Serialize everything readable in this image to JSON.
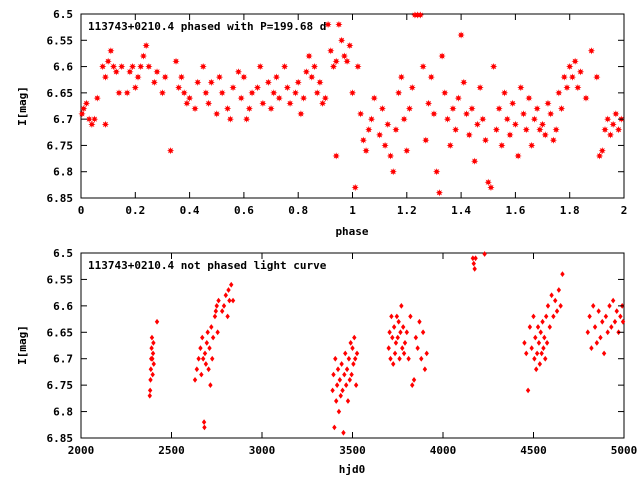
{
  "chart_data": [
    {
      "type": "scatter",
      "title": "113743+0210.4 phased with P=199.68 d",
      "xlabel": "phase",
      "ylabel": "I[mag]",
      "xlim": [
        0,
        2
      ],
      "ylim": [
        6.5,
        6.85
      ],
      "y_inverted": true,
      "xticks": [
        0,
        0.2,
        0.4,
        0.6,
        0.8,
        1,
        1.2,
        1.4,
        1.6,
        1.8,
        2
      ],
      "xtick_labels": [
        "0",
        "0.2",
        "0.4",
        "0.6",
        "0.8",
        "1",
        "1.2",
        "1.4",
        "1.6",
        "1.8",
        "2"
      ],
      "yticks": [
        6.5,
        6.55,
        6.6,
        6.65,
        6.7,
        6.75,
        6.8,
        6.85
      ],
      "ytick_labels": [
        "6.5",
        "6.55",
        "6.6",
        "6.65",
        "6.7",
        "6.75",
        "6.8",
        "6.85"
      ],
      "grid": false,
      "marker_color": "#ff0000",
      "marker": "filled-star",
      "points": [
        [
          0.0,
          6.69
        ],
        [
          0.01,
          6.68
        ],
        [
          0.02,
          6.67
        ],
        [
          0.03,
          6.7
        ],
        [
          0.04,
          6.71
        ],
        [
          0.05,
          6.7
        ],
        [
          0.06,
          6.66
        ],
        [
          0.08,
          6.6
        ],
        [
          0.09,
          6.62
        ],
        [
          0.1,
          6.59
        ],
        [
          0.11,
          6.57
        ],
        [
          0.12,
          6.6
        ],
        [
          0.13,
          6.61
        ],
        [
          0.09,
          6.71
        ],
        [
          0.14,
          6.65
        ],
        [
          0.15,
          6.6
        ],
        [
          0.17,
          6.65
        ],
        [
          0.18,
          6.61
        ],
        [
          0.19,
          6.6
        ],
        [
          0.2,
          6.64
        ],
        [
          0.21,
          6.62
        ],
        [
          0.22,
          6.6
        ],
        [
          0.23,
          6.58
        ],
        [
          0.24,
          6.56
        ],
        [
          0.25,
          6.6
        ],
        [
          0.27,
          6.63
        ],
        [
          0.28,
          6.61
        ],
        [
          0.3,
          6.65
        ],
        [
          0.31,
          6.62
        ],
        [
          0.33,
          6.76
        ],
        [
          0.35,
          6.59
        ],
        [
          0.36,
          6.64
        ],
        [
          0.37,
          6.62
        ],
        [
          0.38,
          6.65
        ],
        [
          0.39,
          6.67
        ],
        [
          0.4,
          6.66
        ],
        [
          0.42,
          6.68
        ],
        [
          0.43,
          6.63
        ],
        [
          0.45,
          6.6
        ],
        [
          0.46,
          6.65
        ],
        [
          0.47,
          6.67
        ],
        [
          0.48,
          6.63
        ],
        [
          0.5,
          6.69
        ],
        [
          0.51,
          6.62
        ],
        [
          0.52,
          6.65
        ],
        [
          0.54,
          6.68
        ],
        [
          0.55,
          6.7
        ],
        [
          0.56,
          6.64
        ],
        [
          0.58,
          6.61
        ],
        [
          0.59,
          6.66
        ],
        [
          0.6,
          6.62
        ],
        [
          0.61,
          6.7
        ],
        [
          0.62,
          6.68
        ],
        [
          0.63,
          6.65
        ],
        [
          0.65,
          6.64
        ],
        [
          0.66,
          6.6
        ],
        [
          0.67,
          6.67
        ],
        [
          0.69,
          6.63
        ],
        [
          0.7,
          6.68
        ],
        [
          0.71,
          6.65
        ],
        [
          0.72,
          6.62
        ],
        [
          0.73,
          6.66
        ],
        [
          0.75,
          6.6
        ],
        [
          0.76,
          6.64
        ],
        [
          0.77,
          6.67
        ],
        [
          0.79,
          6.65
        ],
        [
          0.8,
          6.63
        ],
        [
          0.81,
          6.69
        ],
        [
          0.82,
          6.66
        ],
        [
          0.83,
          6.61
        ],
        [
          0.84,
          6.58
        ],
        [
          0.85,
          6.62
        ],
        [
          0.86,
          6.6
        ],
        [
          0.87,
          6.65
        ],
        [
          0.88,
          6.63
        ],
        [
          0.89,
          6.67
        ],
        [
          0.9,
          6.66
        ],
        [
          0.91,
          6.52
        ],
        [
          0.92,
          6.57
        ],
        [
          0.93,
          6.6
        ],
        [
          0.94,
          6.59
        ],
        [
          0.95,
          6.52
        ],
        [
          0.96,
          6.55
        ],
        [
          0.97,
          6.58
        ],
        [
          0.98,
          6.59
        ],
        [
          0.94,
          6.77
        ],
        [
          0.99,
          6.56
        ],
        [
          1.0,
          6.65
        ],
        [
          1.01,
          6.83
        ],
        [
          1.02,
          6.6
        ],
        [
          1.03,
          6.69
        ],
        [
          1.04,
          6.74
        ],
        [
          1.05,
          6.76
        ],
        [
          1.06,
          6.72
        ],
        [
          1.07,
          6.7
        ],
        [
          1.08,
          6.66
        ],
        [
          1.1,
          6.73
        ],
        [
          1.11,
          6.68
        ],
        [
          1.12,
          6.75
        ],
        [
          1.13,
          6.71
        ],
        [
          1.14,
          6.77
        ],
        [
          1.15,
          6.8
        ],
        [
          1.16,
          6.72
        ],
        [
          1.17,
          6.65
        ],
        [
          1.18,
          6.62
        ],
        [
          1.19,
          6.7
        ],
        [
          1.2,
          6.76
        ],
        [
          1.21,
          6.68
        ],
        [
          1.22,
          6.64
        ],
        [
          1.23,
          6.5
        ],
        [
          1.24,
          6.5
        ],
        [
          1.25,
          6.5
        ],
        [
          1.26,
          6.6
        ],
        [
          1.27,
          6.74
        ],
        [
          1.28,
          6.67
        ],
        [
          1.29,
          6.62
        ],
        [
          1.3,
          6.69
        ],
        [
          1.31,
          6.8
        ],
        [
          1.32,
          6.84
        ],
        [
          1.33,
          6.58
        ],
        [
          1.34,
          6.65
        ],
        [
          1.35,
          6.7
        ],
        [
          1.36,
          6.75
        ],
        [
          1.37,
          6.68
        ],
        [
          1.38,
          6.72
        ],
        [
          1.39,
          6.66
        ],
        [
          1.4,
          6.54
        ],
        [
          1.41,
          6.63
        ],
        [
          1.42,
          6.69
        ],
        [
          1.43,
          6.73
        ],
        [
          1.44,
          6.68
        ],
        [
          1.45,
          6.78
        ],
        [
          1.46,
          6.71
        ],
        [
          1.47,
          6.64
        ],
        [
          1.48,
          6.7
        ],
        [
          1.49,
          6.74
        ],
        [
          1.5,
          6.82
        ],
        [
          1.51,
          6.83
        ],
        [
          1.52,
          6.6
        ],
        [
          1.53,
          6.72
        ],
        [
          1.54,
          6.68
        ],
        [
          1.55,
          6.75
        ],
        [
          1.56,
          6.65
        ],
        [
          1.57,
          6.7
        ],
        [
          1.58,
          6.73
        ],
        [
          1.59,
          6.67
        ],
        [
          1.6,
          6.71
        ],
        [
          1.61,
          6.77
        ],
        [
          1.62,
          6.64
        ],
        [
          1.63,
          6.69
        ],
        [
          1.64,
          6.72
        ],
        [
          1.65,
          6.66
        ],
        [
          1.66,
          6.75
        ],
        [
          1.67,
          6.7
        ],
        [
          1.68,
          6.68
        ],
        [
          1.69,
          6.72
        ],
        [
          1.7,
          6.71
        ],
        [
          1.71,
          6.73
        ],
        [
          1.72,
          6.67
        ],
        [
          1.73,
          6.69
        ],
        [
          1.74,
          6.74
        ],
        [
          1.75,
          6.72
        ],
        [
          1.76,
          6.65
        ],
        [
          1.77,
          6.68
        ],
        [
          1.78,
          6.62
        ],
        [
          1.79,
          6.64
        ],
        [
          1.8,
          6.6
        ],
        [
          1.81,
          6.62
        ],
        [
          1.82,
          6.59
        ],
        [
          1.83,
          6.64
        ],
        [
          1.84,
          6.61
        ],
        [
          1.86,
          6.66
        ],
        [
          1.88,
          6.57
        ],
        [
          1.9,
          6.62
        ],
        [
          1.91,
          6.77
        ],
        [
          1.92,
          6.76
        ],
        [
          1.93,
          6.72
        ],
        [
          1.94,
          6.7
        ],
        [
          1.95,
          6.73
        ],
        [
          1.96,
          6.71
        ],
        [
          1.97,
          6.69
        ],
        [
          1.98,
          6.72
        ],
        [
          1.99,
          6.7
        ]
      ]
    },
    {
      "type": "scatter",
      "title": "113743+0210.4 not phased light curve",
      "xlabel": "hjd0",
      "ylabel": "I[mag]",
      "xlim": [
        2000,
        5000
      ],
      "ylim": [
        6.5,
        6.85
      ],
      "y_inverted": true,
      "xticks": [
        2000,
        2500,
        3000,
        3500,
        4000,
        4500,
        5000
      ],
      "xtick_labels": [
        "2000",
        "2500",
        "3000",
        "3500",
        "4000",
        "4500",
        "5000"
      ],
      "yticks": [
        6.5,
        6.55,
        6.6,
        6.65,
        6.7,
        6.75,
        6.8,
        6.85
      ],
      "ytick_labels": [
        "6.5",
        "6.55",
        "6.6",
        "6.65",
        "6.7",
        "6.75",
        "6.8",
        "6.85"
      ],
      "grid": false,
      "marker_color": "#ff0000",
      "marker": "diamond",
      "points": [
        [
          2380,
          6.77
        ],
        [
          2382,
          6.76
        ],
        [
          2384,
          6.74
        ],
        [
          2386,
          6.72
        ],
        [
          2388,
          6.7
        ],
        [
          2390,
          6.68
        ],
        [
          2392,
          6.66
        ],
        [
          2394,
          6.7
        ],
        [
          2396,
          6.73
        ],
        [
          2398,
          6.69
        ],
        [
          2400,
          6.67
        ],
        [
          2402,
          6.71
        ],
        [
          2420,
          6.63
        ],
        [
          2630,
          6.74
        ],
        [
          2640,
          6.72
        ],
        [
          2650,
          6.7
        ],
        [
          2660,
          6.68
        ],
        [
          2665,
          6.73
        ],
        [
          2670,
          6.66
        ],
        [
          2675,
          6.7
        ],
        [
          2680,
          6.82
        ],
        [
          2682,
          6.83
        ],
        [
          2685,
          6.69
        ],
        [
          2690,
          6.71
        ],
        [
          2695,
          6.67
        ],
        [
          2700,
          6.65
        ],
        [
          2705,
          6.72
        ],
        [
          2710,
          6.68
        ],
        [
          2715,
          6.75
        ],
        [
          2720,
          6.64
        ],
        [
          2725,
          6.7
        ],
        [
          2730,
          6.66
        ],
        [
          2740,
          6.62
        ],
        [
          2745,
          6.61
        ],
        [
          2750,
          6.6
        ],
        [
          2755,
          6.65
        ],
        [
          2760,
          6.59
        ],
        [
          2780,
          6.61
        ],
        [
          2790,
          6.6
        ],
        [
          2800,
          6.58
        ],
        [
          2810,
          6.62
        ],
        [
          2815,
          6.57
        ],
        [
          2820,
          6.59
        ],
        [
          2830,
          6.56
        ],
        [
          2840,
          6.59
        ],
        [
          3390,
          6.76
        ],
        [
          3395,
          6.73
        ],
        [
          3400,
          6.83
        ],
        [
          3405,
          6.7
        ],
        [
          3410,
          6.78
        ],
        [
          3415,
          6.75
        ],
        [
          3420,
          6.72
        ],
        [
          3425,
          6.8
        ],
        [
          3430,
          6.74
        ],
        [
          3435,
          6.77
        ],
        [
          3440,
          6.71
        ],
        [
          3445,
          6.76
        ],
        [
          3450,
          6.84
        ],
        [
          3455,
          6.73
        ],
        [
          3460,
          6.69
        ],
        [
          3465,
          6.75
        ],
        [
          3470,
          6.72
        ],
        [
          3475,
          6.78
        ],
        [
          3480,
          6.7
        ],
        [
          3485,
          6.74
        ],
        [
          3490,
          6.67
        ],
        [
          3495,
          6.73
        ],
        [
          3500,
          6.68
        ],
        [
          3505,
          6.71
        ],
        [
          3510,
          6.66
        ],
        [
          3515,
          6.7
        ],
        [
          3520,
          6.75
        ],
        [
          3525,
          6.69
        ],
        [
          3700,
          6.68
        ],
        [
          3705,
          6.65
        ],
        [
          3710,
          6.7
        ],
        [
          3715,
          6.62
        ],
        [
          3720,
          6.66
        ],
        [
          3725,
          6.71
        ],
        [
          3730,
          6.64
        ],
        [
          3735,
          6.69
        ],
        [
          3740,
          6.67
        ],
        [
          3745,
          6.62
        ],
        [
          3750,
          6.66
        ],
        [
          3755,
          6.63
        ],
        [
          3760,
          6.7
        ],
        [
          3765,
          6.65
        ],
        [
          3770,
          6.6
        ],
        [
          3775,
          6.68
        ],
        [
          3780,
          6.64
        ],
        [
          3785,
          6.69
        ],
        [
          3790,
          6.67
        ],
        [
          3800,
          6.65
        ],
        [
          3810,
          6.7
        ],
        [
          3820,
          6.62
        ],
        [
          3830,
          6.75
        ],
        [
          3840,
          6.74
        ],
        [
          3850,
          6.66
        ],
        [
          3860,
          6.68
        ],
        [
          3870,
          6.63
        ],
        [
          3880,
          6.7
        ],
        [
          3890,
          6.65
        ],
        [
          3900,
          6.72
        ],
        [
          3910,
          6.69
        ],
        [
          4165,
          6.51
        ],
        [
          4170,
          6.52
        ],
        [
          4175,
          6.53
        ],
        [
          4180,
          6.51
        ],
        [
          4230,
          6.5
        ],
        [
          4450,
          6.67
        ],
        [
          4460,
          6.69
        ],
        [
          4470,
          6.76
        ],
        [
          4480,
          6.64
        ],
        [
          4490,
          6.68
        ],
        [
          4500,
          6.62
        ],
        [
          4505,
          6.7
        ],
        [
          4510,
          6.66
        ],
        [
          4515,
          6.72
        ],
        [
          4520,
          6.69
        ],
        [
          4525,
          6.64
        ],
        [
          4530,
          6.67
        ],
        [
          4535,
          6.71
        ],
        [
          4540,
          6.65
        ],
        [
          4545,
          6.69
        ],
        [
          4550,
          6.63
        ],
        [
          4555,
          6.68
        ],
        [
          4560,
          6.66
        ],
        [
          4565,
          6.7
        ],
        [
          4570,
          6.62
        ],
        [
          4575,
          6.67
        ],
        [
          4580,
          6.6
        ],
        [
          4590,
          6.64
        ],
        [
          4600,
          6.58
        ],
        [
          4610,
          6.62
        ],
        [
          4620,
          6.59
        ],
        [
          4630,
          6.61
        ],
        [
          4640,
          6.57
        ],
        [
          4650,
          6.6
        ],
        [
          4660,
          6.54
        ],
        [
          4800,
          6.65
        ],
        [
          4810,
          6.62
        ],
        [
          4820,
          6.68
        ],
        [
          4830,
          6.6
        ],
        [
          4840,
          6.64
        ],
        [
          4850,
          6.67
        ],
        [
          4860,
          6.61
        ],
        [
          4870,
          6.66
        ],
        [
          4880,
          6.63
        ],
        [
          4890,
          6.69
        ],
        [
          4900,
          6.62
        ],
        [
          4910,
          6.65
        ],
        [
          4920,
          6.6
        ],
        [
          4930,
          6.64
        ],
        [
          4940,
          6.59
        ],
        [
          4950,
          6.63
        ],
        [
          4960,
          6.61
        ],
        [
          4970,
          6.65
        ],
        [
          4980,
          6.62
        ],
        [
          4990,
          6.6
        ],
        [
          5000,
          6.63
        ]
      ]
    }
  ]
}
